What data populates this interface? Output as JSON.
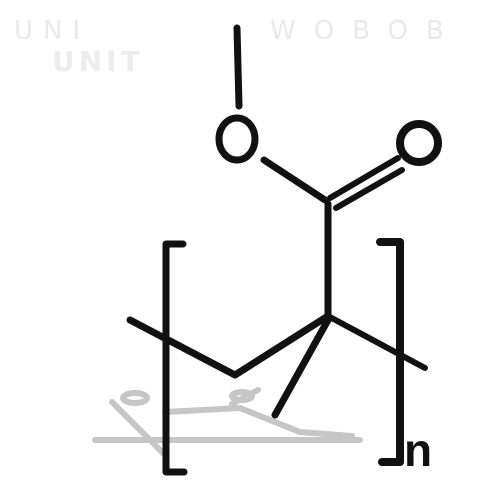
{
  "structure": {
    "atom_oxygen_methoxy": "O",
    "atom_oxygen_carbonyl": "O",
    "repeat_subscript": "n"
  },
  "background_text": {
    "top_left": "UNI",
    "top_right": "WOBOB",
    "unit": "UNIT"
  },
  "colors": {
    "stroke": "#111111",
    "shadow": "#bdbdbd",
    "ghost": "#e9e9e9",
    "background": "#ffffff"
  }
}
